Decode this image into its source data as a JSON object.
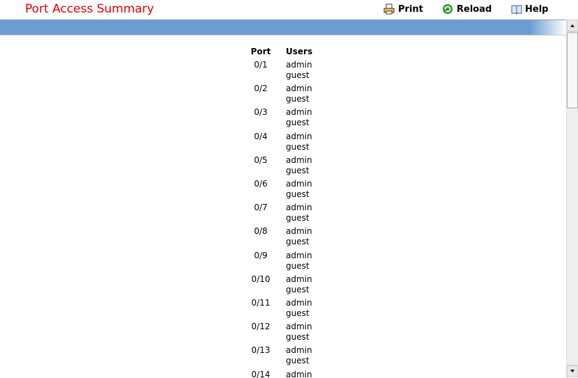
{
  "header": {
    "title": "Port Access Summary",
    "actions": [
      "Print",
      "Reload",
      "Help"
    ]
  },
  "table": {
    "columns": [
      "Port",
      "Users"
    ],
    "rows": [
      {
        "port": "0/1",
        "users": [
          "admin",
          "guest"
        ]
      },
      {
        "port": "0/2",
        "users": [
          "admin",
          "guest"
        ]
      },
      {
        "port": "0/3",
        "users": [
          "admin",
          "guest"
        ]
      },
      {
        "port": "0/4",
        "users": [
          "admin",
          "guest"
        ]
      },
      {
        "port": "0/5",
        "users": [
          "admin",
          "guest"
        ]
      },
      {
        "port": "0/6",
        "users": [
          "admin",
          "guest"
        ]
      },
      {
        "port": "0/7",
        "users": [
          "admin",
          "guest"
        ]
      },
      {
        "port": "0/8",
        "users": [
          "admin",
          "guest"
        ]
      },
      {
        "port": "0/9",
        "users": [
          "admin",
          "guest"
        ]
      },
      {
        "port": "0/10",
        "users": [
          "admin",
          "guest"
        ]
      },
      {
        "port": "0/11",
        "users": [
          "admin",
          "guest"
        ]
      },
      {
        "port": "0/12",
        "users": [
          "admin",
          "guest"
        ]
      },
      {
        "port": "0/13",
        "users": [
          "admin",
          "guest"
        ]
      },
      {
        "port": "0/14",
        "users": [
          "admin"
        ]
      }
    ]
  }
}
